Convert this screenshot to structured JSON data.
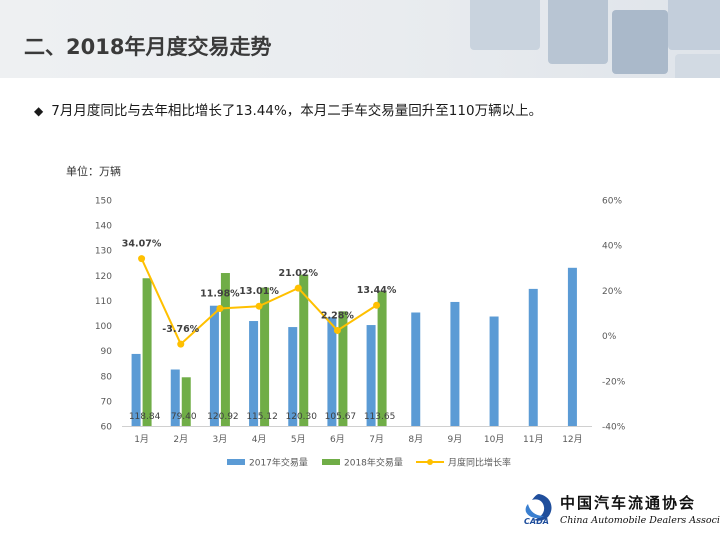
{
  "page": {
    "title": "二、2018年月度交易走势",
    "bullet": "7月月度同比与去年相比增长了13.44%，本月二手车交易量回升至110万辆以上。",
    "unit_label": "单位：万辆"
  },
  "logo": {
    "mark_text": "CADA",
    "name_cn": "中国汽车流通协会",
    "name_en": "China Automobile Dealers Association"
  },
  "colors": {
    "series2017": "#5b9bd5",
    "series2018": "#70ad47",
    "growth": "#ffc000"
  },
  "chart_data": {
    "type": "bar",
    "categories": [
      "1月",
      "2月",
      "3月",
      "4月",
      "5月",
      "6月",
      "7月",
      "8月",
      "9月",
      "10月",
      "11月",
      "12月"
    ],
    "series": [
      {
        "name": "2017年交易量",
        "values": [
          88.7,
          82.5,
          107.9,
          101.8,
          99.4,
          103.3,
          100.2,
          105.2,
          109.4,
          103.6,
          114.6,
          123.0
        ]
      },
      {
        "name": "2018年交易量",
        "values": [
          118.84,
          79.4,
          120.92,
          115.12,
          120.3,
          105.67,
          113.65,
          null,
          null,
          null,
          null,
          null
        ],
        "data_labels": [
          "118.84",
          "79.40",
          "120.92",
          "115.12",
          "120.30",
          "105.67",
          "113.65"
        ]
      },
      {
        "name": "月度同比增长率",
        "axis": "right",
        "values": [
          34.07,
          -3.76,
          11.98,
          13.01,
          21.02,
          2.28,
          13.44,
          null,
          null,
          null,
          null,
          null
        ],
        "data_labels": [
          "34.07%",
          "-3.76%",
          "11.98%",
          "13.01%",
          "21.02%",
          "2.28%",
          "13.44%"
        ]
      }
    ],
    "ylim": [
      60,
      150
    ],
    "yticks": [
      "60",
      "70",
      "80",
      "90",
      "100",
      "110",
      "120",
      "130",
      "140",
      "150"
    ],
    "y2lim": [
      -40,
      60
    ],
    "y2ticks": [
      "-40%",
      "-20%",
      "0%",
      "20%",
      "40%",
      "60%"
    ],
    "legend_position": "bottom",
    "grid": false
  }
}
